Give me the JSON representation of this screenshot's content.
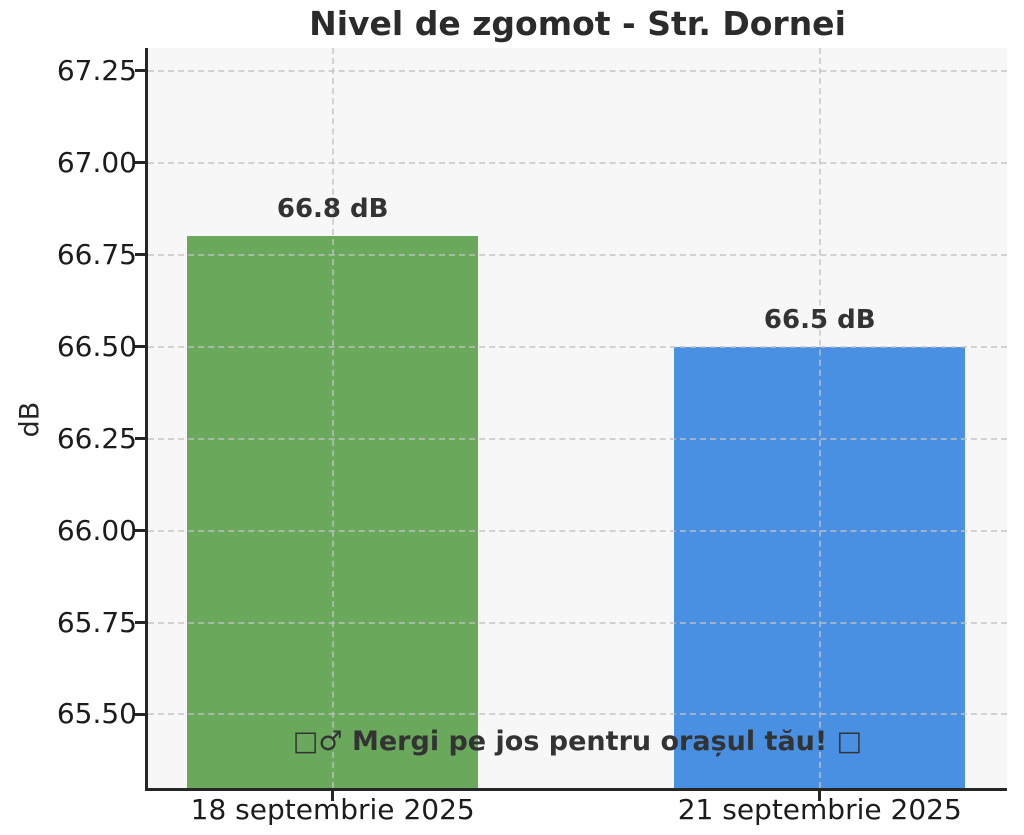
{
  "chart_data": {
    "type": "bar",
    "title": "Nivel de zgomot - Str. Dornei",
    "ylabel": "dB",
    "categories": [
      "18 septembrie 2025",
      "21 septembrie 2025"
    ],
    "values": [
      66.8,
      66.5
    ],
    "bar_labels": [
      "66.8 dB",
      "66.5 dB"
    ],
    "bar_colors": [
      "#6aa85c",
      "#4a90e2"
    ],
    "ytick_values": [
      65.5,
      65.75,
      66.0,
      66.25,
      66.5,
      66.75,
      67.0,
      67.25
    ],
    "ytick_labels": [
      "65.50",
      "65.75",
      "66.00",
      "66.25",
      "66.50",
      "66.75",
      "67.00",
      "67.25"
    ],
    "ylim": [
      65.3,
      67.3125
    ],
    "grid": true,
    "legend": "none",
    "annotation": "□♂ Mergi pe jos pentru orașul tău! □",
    "colors": {
      "figure_background": "#ffffff",
      "plot_background": "#f7f7f7",
      "grid": "#c2c2c2",
      "spine": "#262626",
      "text": "#262626"
    }
  }
}
